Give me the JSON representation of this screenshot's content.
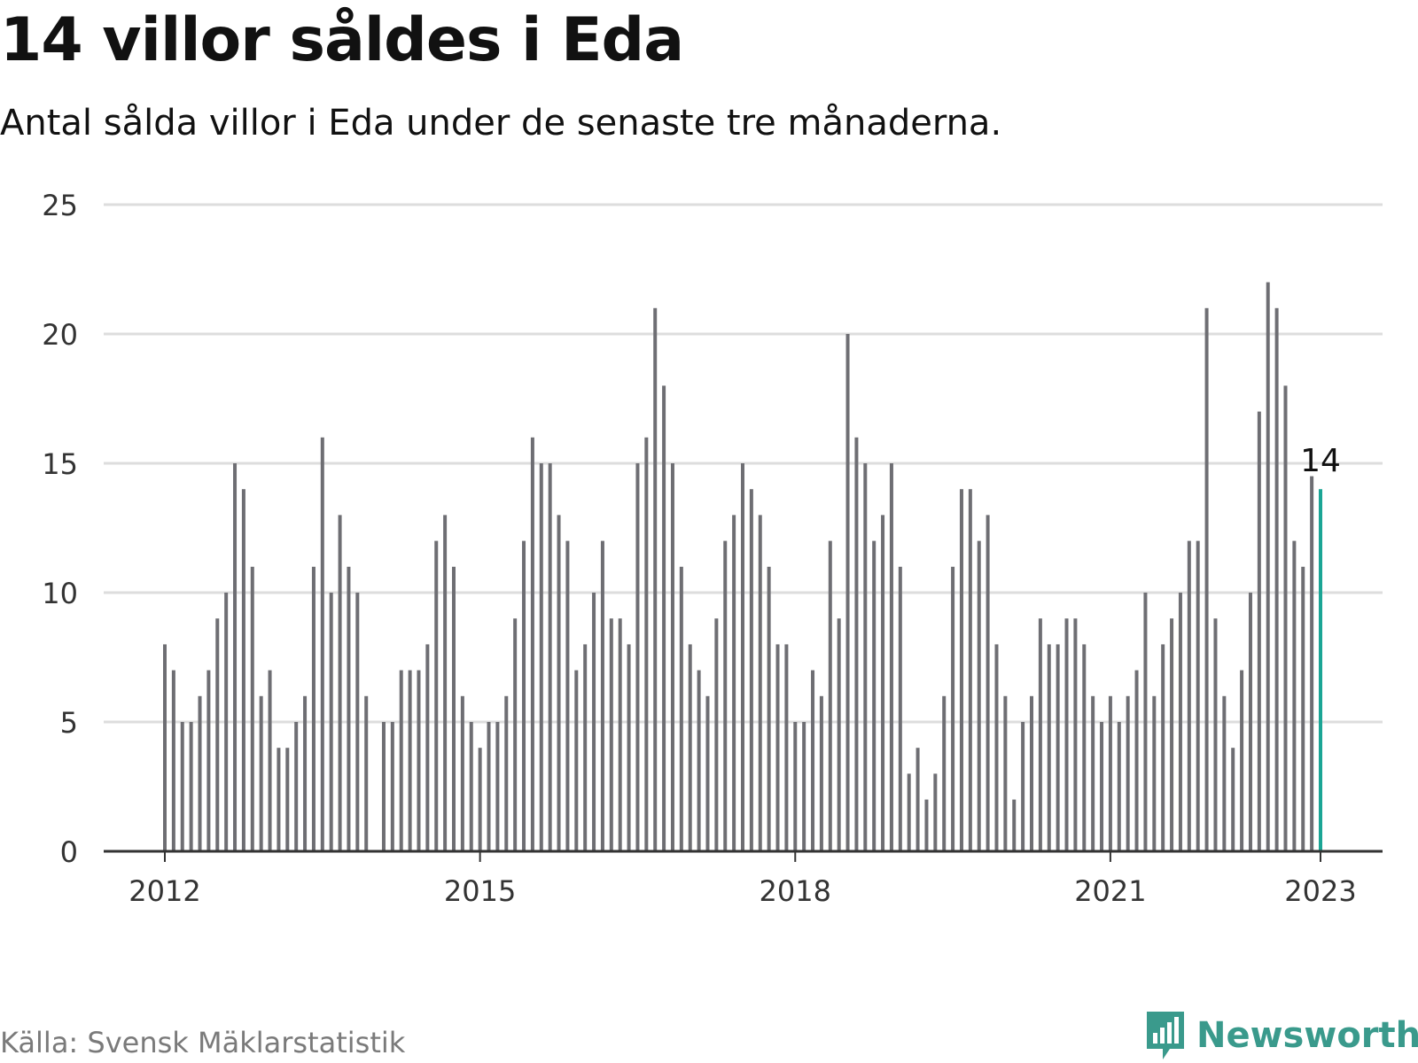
{
  "title": "14 villor såldes i Eda",
  "subtitle": "Antal sålda villor i Eda under de senaste tre månaderna.",
  "source": "Källa: Svensk Mäklarstatistik",
  "logo_text": "Newsworthy",
  "colors": {
    "bar": "#6e6e73",
    "highlight": "#1ba595",
    "grid": "#dddddd",
    "axis": "#333333",
    "logo": "#3a9a8c"
  },
  "chart_data": {
    "type": "bar",
    "start_month": "2012-01",
    "end_month": "2023-01",
    "values": [
      8,
      7,
      5,
      5,
      6,
      7,
      9,
      10,
      15,
      14,
      11,
      6,
      7,
      4,
      4,
      5,
      6,
      11,
      16,
      10,
      13,
      11,
      10,
      6,
      0,
      5,
      5,
      7,
      7,
      7,
      8,
      12,
      13,
      11,
      6,
      5,
      4,
      5,
      5,
      6,
      9,
      12,
      16,
      15,
      15,
      13,
      12,
      7,
      8,
      10,
      12,
      9,
      9,
      8,
      15,
      16,
      21,
      18,
      15,
      11,
      8,
      7,
      6,
      9,
      12,
      13,
      15,
      14,
      13,
      11,
      8,
      8,
      5,
      5,
      7,
      6,
      12,
      9,
      20,
      16,
      15,
      12,
      13,
      15,
      11,
      3,
      4,
      2,
      3,
      6,
      11,
      14,
      14,
      12,
      13,
      8,
      6,
      2,
      5,
      6,
      9,
      8,
      8,
      9,
      9,
      8,
      6,
      5,
      6,
      5,
      6,
      7,
      10,
      6,
      8,
      9,
      10,
      12,
      12,
      21,
      9,
      6,
      4,
      7,
      10,
      17,
      22,
      21,
      18,
      12,
      11,
      14.5,
      14
    ],
    "highlight": {
      "value": 14,
      "label": "14"
    },
    "yticks": [
      0,
      5,
      10,
      15,
      20,
      25
    ],
    "ylim": [
      0,
      25
    ],
    "xticks": [
      "2012",
      "2015",
      "2018",
      "2021",
      "2023"
    ],
    "grid": true
  }
}
